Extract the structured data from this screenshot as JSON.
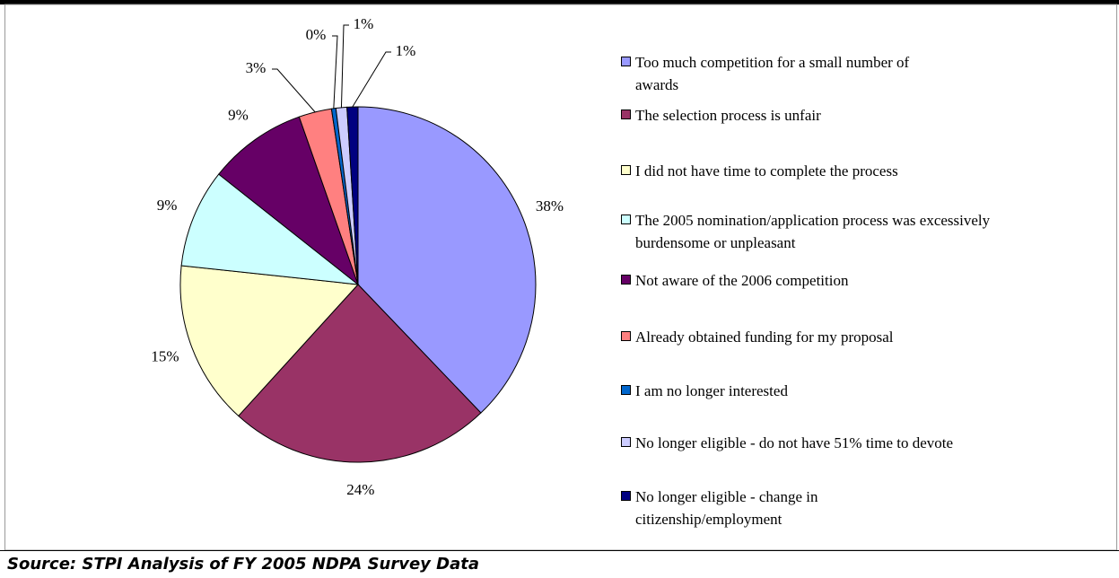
{
  "chart_data": {
    "type": "pie",
    "categories": [
      "Too much competition for a small number of awards",
      "The selection process is unfair",
      "I did not have time to complete the process",
      "The 2005 nomination/application process was excessively burdensome or unpleasant",
      "Not aware of the 2006 competition",
      "Already obtained funding for my proposal",
      "I am no longer interested",
      "No longer eligible - do not have 51% time to devote",
      "No longer eligible - change in citizenship/employment"
    ],
    "values": [
      38,
      24,
      15,
      9,
      9,
      3,
      0.4,
      1,
      1
    ],
    "value_labels": [
      "38%",
      "24%",
      "15%",
      "9%",
      "9%",
      "3%",
      "0%",
      "1%",
      "1%"
    ],
    "colors": [
      "#9999ff",
      "#993366",
      "#ffffcc",
      "#ccffff",
      "#660066",
      "#ff8080",
      "#0066cc",
      "#ccccff",
      "#000080"
    ],
    "source": "Source: STPI Analysis of FY 2005 NDPA Survey Data"
  }
}
